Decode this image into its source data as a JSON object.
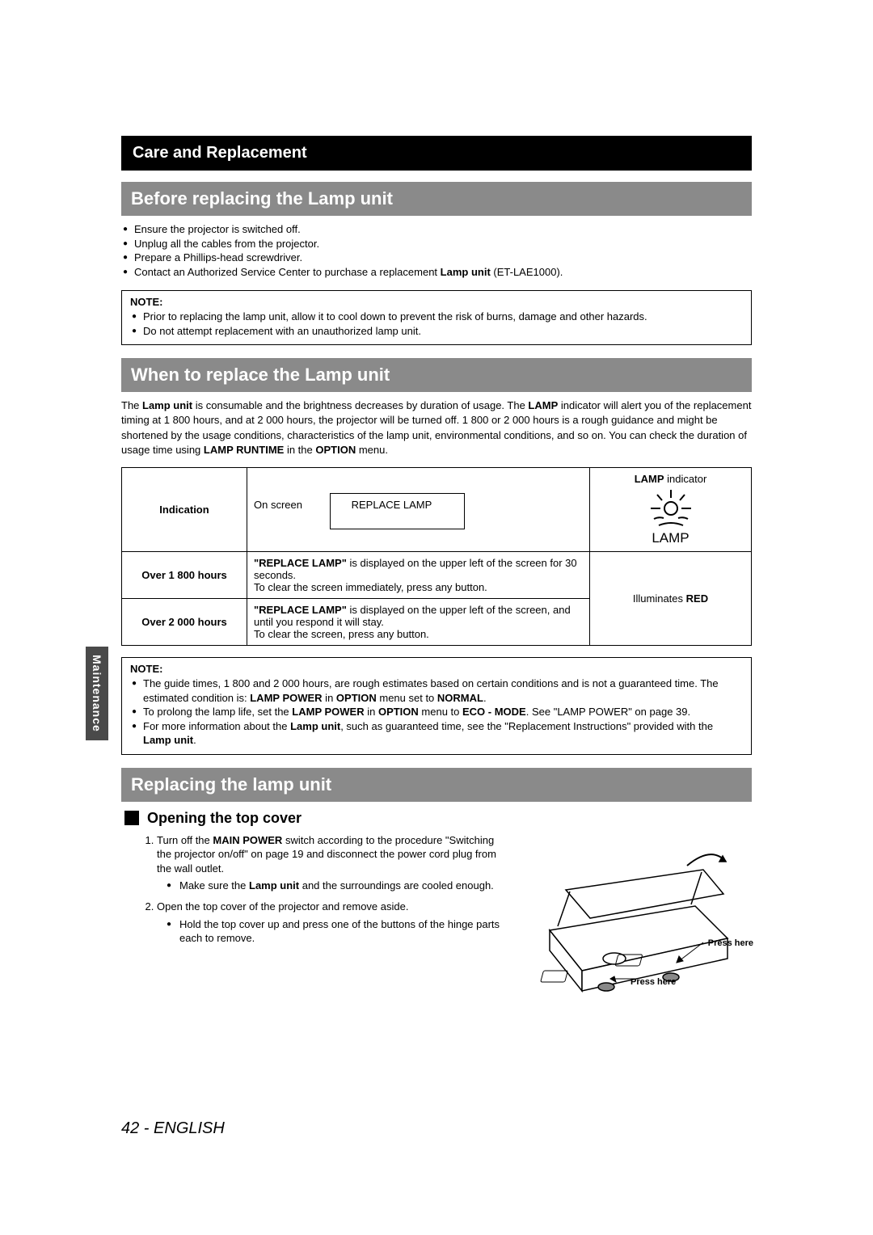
{
  "sideTab": "Maintenance",
  "titleBar": "Care and Replacement",
  "section1": {
    "heading": "Before replacing the Lamp unit",
    "bullets": [
      "Ensure the projector is switched off.",
      "Unplug all the cables from the projector.",
      "Prepare a Phillips-head screwdriver.",
      "Contact an Authorized Service Center to purchase a replacement <b>Lamp unit</b> (ET-LAE1000)."
    ],
    "note": {
      "title": "NOTE:",
      "items": [
        "Prior to replacing the lamp unit, allow it to cool down to prevent the risk of burns, damage and other hazards.",
        "Do not attempt replacement with an unauthorized lamp unit."
      ]
    }
  },
  "section2": {
    "heading": "When to replace the Lamp unit",
    "paragraph": "The <b>Lamp unit</b> is consumable and the brightness decreases by duration of usage. The <b>LAMP</b> indicator will alert you of the replacement timing at 1 800 hours, and at 2 000 hours, the projector will be turned off. 1 800 or 2 000 hours is a rough guidance and might be shortened by the usage conditions, characteristics of the lamp unit, environmental conditions, and so on. You can check the duration of usage time using <b>LAMP RUNTIME</b> in the <b>OPTION</b> menu.",
    "table": {
      "indicationLabel": "Indication",
      "onScreenLabel": "On screen",
      "replaceLampBox": "REPLACE LAMP",
      "lampIndicatorLabel": "<b>LAMP</b> indicator",
      "lampText": "LAMP",
      "row1Label": "Over 1 800 hours",
      "row1Text": "<b>\"REPLACE LAMP\"</b> is displayed on the upper left of the screen for 30 seconds.<br>To clear the screen immediately, press any button.",
      "row2Label": "Over 2 000 hours",
      "row2Text": "<b>\"REPLACE LAMP\"</b> is displayed on the upper left of the screen, and until you respond it will stay.<br>To clear the screen, press any button.",
      "illuminates": "Illuminates <b>RED</b>"
    },
    "note": {
      "title": "NOTE:",
      "items": [
        "The guide times, 1 800 and 2 000 hours, are rough estimates based on certain conditions and is not a guaranteed time. The estimated condition is: <b>LAMP POWER</b> in <b>OPTION</b> menu set to <b>NORMAL</b>.",
        "To prolong the lamp life, set the <b>LAMP POWER</b> in <b>OPTION</b> menu to <b>ECO - MODE</b>. See \"LAMP POWER\" on page 39.",
        "For more information about the <b>Lamp unit</b>, such as guaranteed time, see the \"Replacement Instructions\" provided with the <b>Lamp unit</b>."
      ]
    }
  },
  "section3": {
    "heading": "Replacing the lamp unit",
    "subheading": "Opening the top cover",
    "steps": [
      {
        "text": "Turn off the <b>MAIN POWER</b> switch according to the procedure \"Switching the projector on/off\" on page 19 and disconnect the power cord plug from the wall outlet.",
        "subs": [
          "Make sure the <b>Lamp unit</b> and the surroundings are cooled enough."
        ]
      },
      {
        "text": "Open the top cover of the projector and remove aside.",
        "subs": [
          "Hold the top cover up and press one of the buttons of the hinge parts each to remove."
        ]
      }
    ],
    "pressHere1": "Press here",
    "pressHere2": "Press here"
  },
  "footer": {
    "pageNum": "42",
    "sep": " - ",
    "lang": "ENGLISH"
  },
  "colors": {
    "titleBg": "#000000",
    "sectionBg": "#8a8a8a",
    "sideTabBg": "#4a4a4a"
  }
}
